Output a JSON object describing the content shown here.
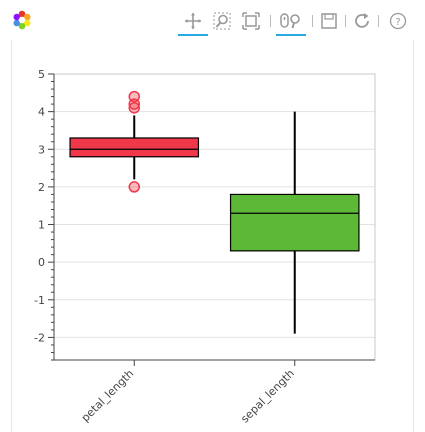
{
  "toolbar": {
    "logo_icon": "bokeh-logo-icon",
    "tools": [
      {
        "name": "pan-tool",
        "icon": "pan-icon",
        "active": true
      },
      {
        "name": "box-zoom-tool",
        "icon": "box-zoom-icon",
        "active": false
      },
      {
        "name": "zoom-to-fit-tool",
        "icon": "zoom-extents-icon",
        "active": false
      },
      {
        "name": "wheel-zoom-tool",
        "icon": "wheel-zoom-icon",
        "active": true
      },
      {
        "name": "save-tool",
        "icon": "save-icon",
        "active": false
      },
      {
        "name": "reset-tool",
        "icon": "reset-icon",
        "active": false
      },
      {
        "name": "help-tool",
        "icon": "help-icon",
        "active": false
      }
    ],
    "accent_color": "#26aae1"
  },
  "chart_data": {
    "type": "box",
    "categories": [
      "petal_length",
      "sepal_length"
    ],
    "ylim": [
      -2.6,
      5.0
    ],
    "yticks": [
      5,
      4,
      3,
      2,
      1,
      0,
      -1,
      -2
    ],
    "grid": true,
    "boxes": [
      {
        "category": "petal_length",
        "q1": 2.8,
        "median": 3.0,
        "q3": 3.3,
        "whisker_low": 2.2,
        "whisker_high": 3.9,
        "outliers": [
          2.0,
          4.1,
          4.2,
          4.4
        ],
        "color": "#f0384a"
      },
      {
        "category": "sepal_length",
        "q1": 0.3,
        "median": 1.3,
        "q3": 1.8,
        "whisker_low": -1.9,
        "whisker_high": 4.0,
        "outliers": [],
        "color": "#5cb836"
      }
    ]
  }
}
